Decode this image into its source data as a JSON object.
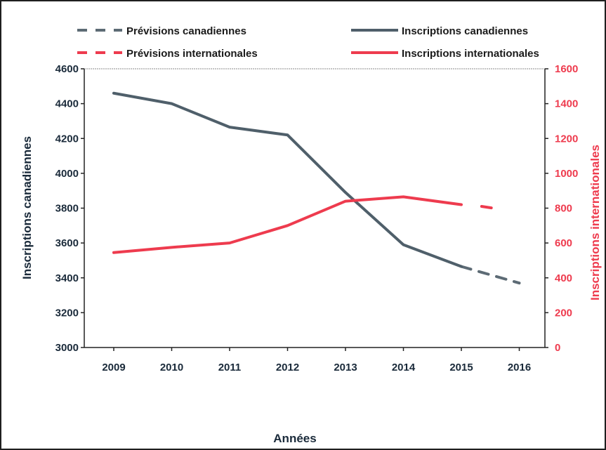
{
  "chart_data": {
    "type": "line",
    "xlabel": "Années",
    "ylabel_left": "Inscriptions canadiennes",
    "ylabel_right": "Inscriptions internationales",
    "x": [
      "2009",
      "2010",
      "2011",
      "2012",
      "2013",
      "2014",
      "2015",
      "2016"
    ],
    "ylim_left": [
      3000,
      4600
    ],
    "yticks_left": [
      3000,
      3200,
      3400,
      3600,
      3800,
      4000,
      4200,
      4400,
      4600
    ],
    "ylim_right": [
      0,
      1600
    ],
    "yticks_right": [
      0,
      200,
      400,
      600,
      800,
      1000,
      1200,
      1400,
      1600
    ],
    "grid": false,
    "legend_position": "top",
    "series": [
      {
        "name": "Prévisions canadiennes",
        "axis": "left",
        "style": "dashed",
        "color": "#5d6b75",
        "points": [
          [
            2015,
            3465
          ],
          [
            2016,
            3370
          ]
        ]
      },
      {
        "name": "Inscriptions canadiennes",
        "axis": "left",
        "style": "solid",
        "color": "#4f5f6a",
        "points": [
          [
            2009,
            4460
          ],
          [
            2010,
            4400
          ],
          [
            2011,
            4265
          ],
          [
            2012,
            4220
          ],
          [
            2013,
            3890
          ],
          [
            2014,
            3590
          ],
          [
            2015,
            3465
          ]
        ]
      },
      {
        "name": "Prévisions internationales",
        "axis": "right",
        "style": "dashed",
        "color": "#ee3b4e",
        "points": [
          [
            2015.35,
            810
          ],
          [
            2015.55,
            800
          ]
        ]
      },
      {
        "name": "Inscriptions internationales",
        "axis": "right",
        "style": "solid",
        "color": "#ee3b4e",
        "points": [
          [
            2009,
            545
          ],
          [
            2010,
            575
          ],
          [
            2011,
            600
          ],
          [
            2012,
            700
          ],
          [
            2013,
            840
          ],
          [
            2014,
            865
          ],
          [
            2015,
            820
          ]
        ]
      }
    ]
  }
}
